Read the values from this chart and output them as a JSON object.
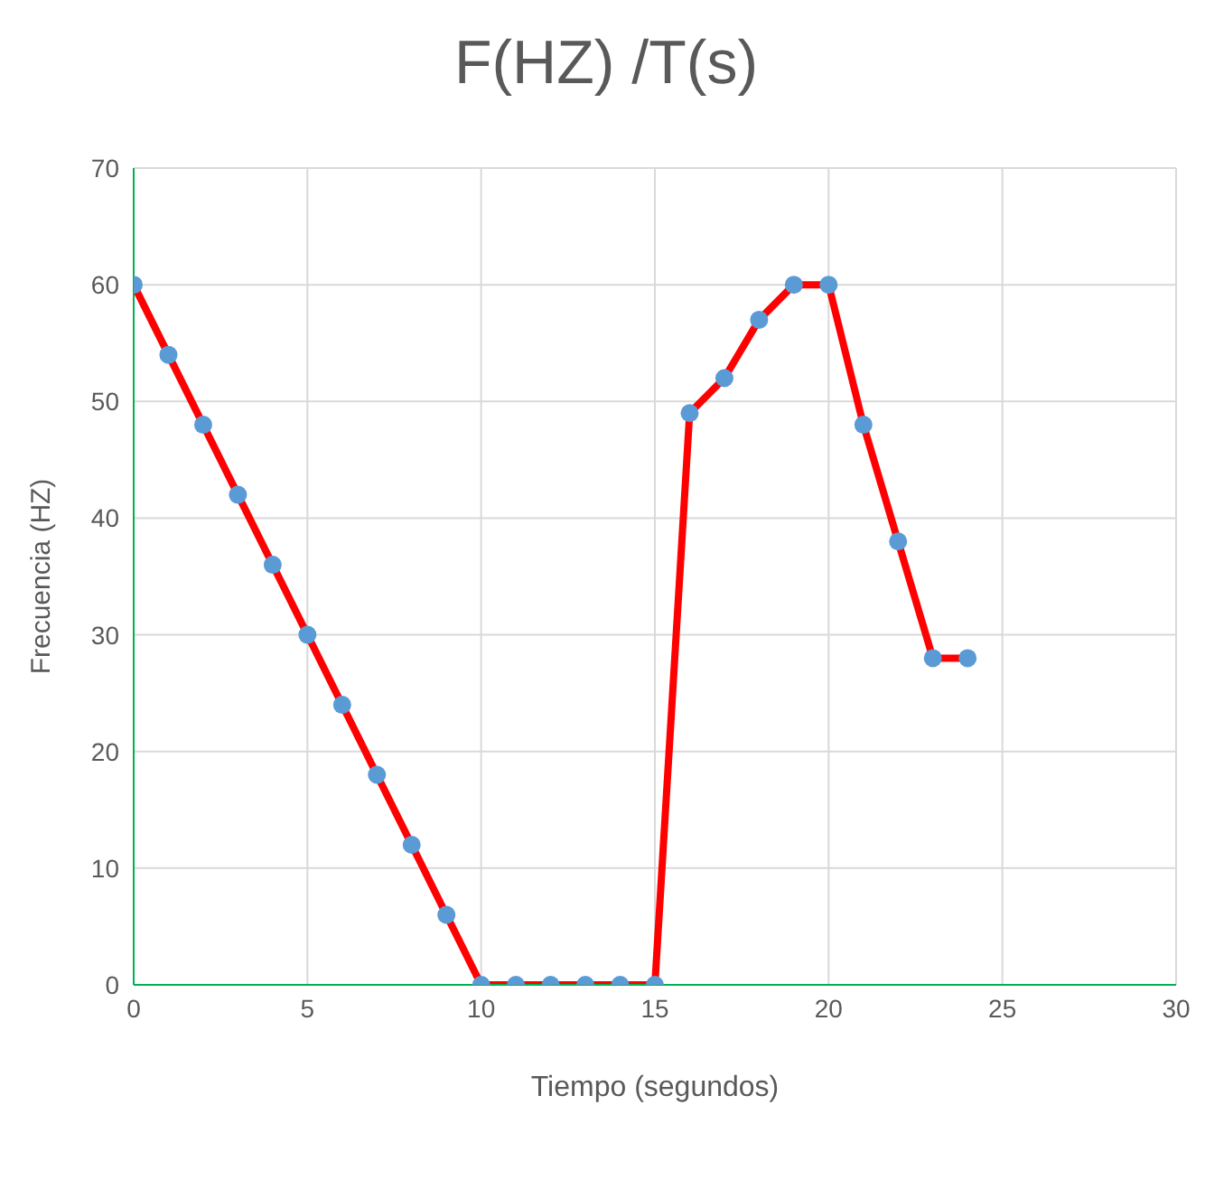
{
  "chart_data": {
    "type": "line",
    "title": "F(HZ) /T(s)",
    "xlabel": "Tiempo (segundos)",
    "ylabel": "Frecuencia (HZ)",
    "x": [
      0,
      1,
      2,
      3,
      4,
      5,
      6,
      7,
      8,
      9,
      10,
      11,
      12,
      13,
      14,
      15,
      16,
      17,
      18,
      19,
      20,
      21,
      22,
      23,
      24
    ],
    "series": [
      {
        "color": "#ff0000",
        "values": [
          60,
          54,
          48,
          42,
          36,
          30,
          24,
          18,
          12,
          6,
          0,
          0,
          0,
          0,
          0,
          0,
          49,
          52,
          57,
          60,
          60,
          48,
          38,
          28,
          28
        ]
      }
    ],
    "marker": "circle",
    "line_style": "solid",
    "xlim": [
      0,
      30
    ],
    "xticks": [
      0,
      5,
      10,
      15,
      20,
      25,
      30
    ],
    "ylim": [
      0,
      70
    ],
    "yticks": [
      0,
      10,
      20,
      30,
      40,
      50,
      60,
      70
    ],
    "grid": true
  }
}
